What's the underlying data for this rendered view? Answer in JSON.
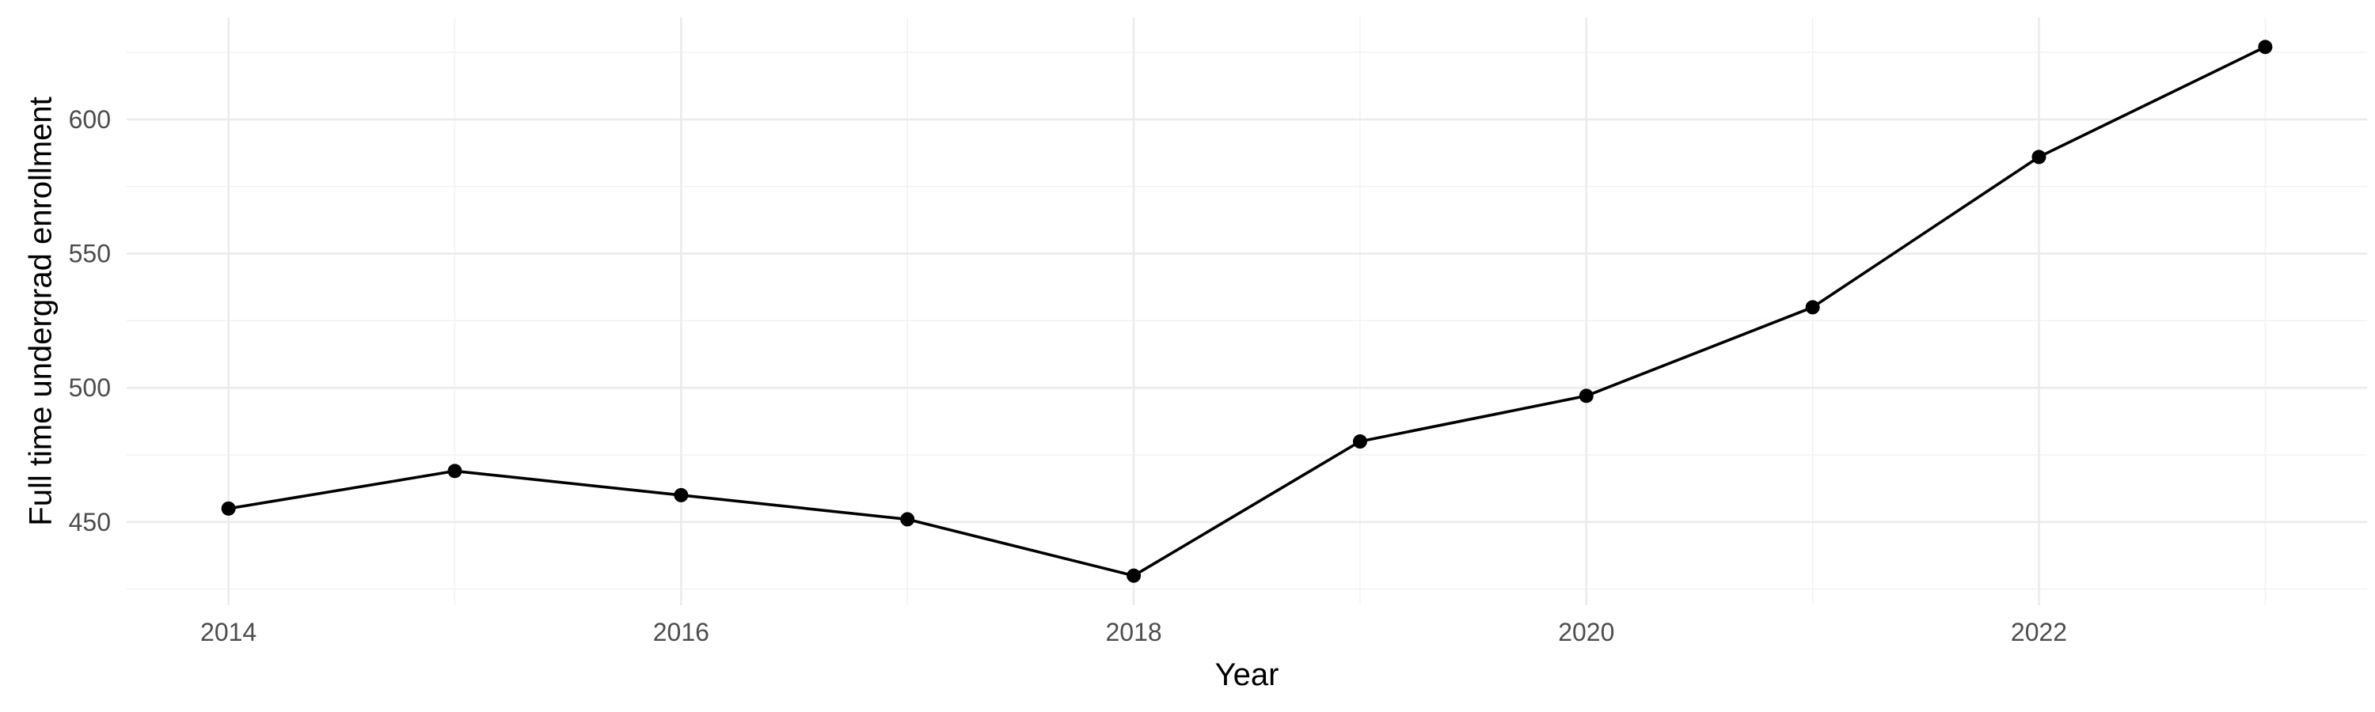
{
  "chart_data": {
    "type": "line",
    "title": "",
    "xlabel": "Year",
    "ylabel": "Full time undergrad enrollment",
    "x": [
      2014,
      2015,
      2016,
      2017,
      2018,
      2019,
      2020,
      2021,
      2022,
      2023
    ],
    "series": [
      {
        "values": [
          455,
          469,
          460,
          451,
          430,
          480,
          497,
          530,
          586,
          627
        ],
        "color": "#000000"
      }
    ],
    "xlim": [
      2013.55,
      2023.45
    ],
    "ylim": [
      419,
      638
    ],
    "x_ticks": [
      2014,
      2016,
      2018,
      2020,
      2022
    ],
    "x_tick_labels": [
      "2014",
      "2016",
      "2018",
      "2020",
      "2022"
    ],
    "y_ticks": [
      450,
      500,
      550,
      600
    ],
    "y_tick_labels": [
      "450",
      "500",
      "550",
      "600"
    ],
    "x_minor_ticks": [
      2015,
      2017,
      2019,
      2021,
      2023
    ],
    "y_minor_ticks": [
      425,
      475,
      525,
      575,
      625
    ],
    "grid": true,
    "legend": "none",
    "markers": true
  }
}
